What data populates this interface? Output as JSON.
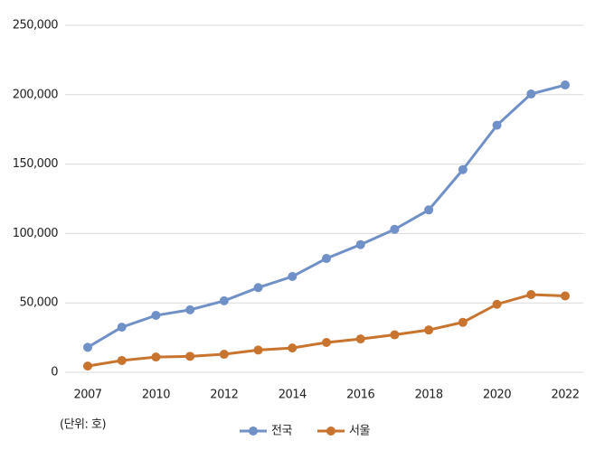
{
  "chart_data": {
    "type": "line",
    "categories": [
      "2007",
      null,
      "2010",
      null,
      "2012",
      null,
      "2014",
      null,
      "2016",
      null,
      "2018",
      null,
      "2020",
      null,
      "2022"
    ],
    "series": [
      {
        "name": "전국",
        "color": "#7090c8",
        "values": [
          18000,
          32500,
          41000,
          45000,
          51500,
          61000,
          69000,
          82000,
          92000,
          103000,
          117000,
          146000,
          178000,
          200500,
          207000
        ]
      },
      {
        "name": "서울",
        "color": "#c8742e",
        "values": [
          4500,
          8500,
          11000,
          11500,
          13000,
          16000,
          17500,
          21500,
          24000,
          27000,
          30500,
          36000,
          49000,
          56000,
          55000
        ]
      }
    ],
    "ylim": [
      0,
      250000
    ],
    "yticks": [
      0,
      {
        "value": 50000,
        "label": "50,000"
      },
      {
        "value": 100000,
        "label": "100,000"
      },
      {
        "value": 150000,
        "label": "150,000"
      },
      {
        "value": 200000,
        "label": "200,000"
      },
      {
        "value": 250000,
        "label": "250,000"
      }
    ],
    "grid": true,
    "legend": "bottom",
    "annotation": "(단위: 호)"
  }
}
